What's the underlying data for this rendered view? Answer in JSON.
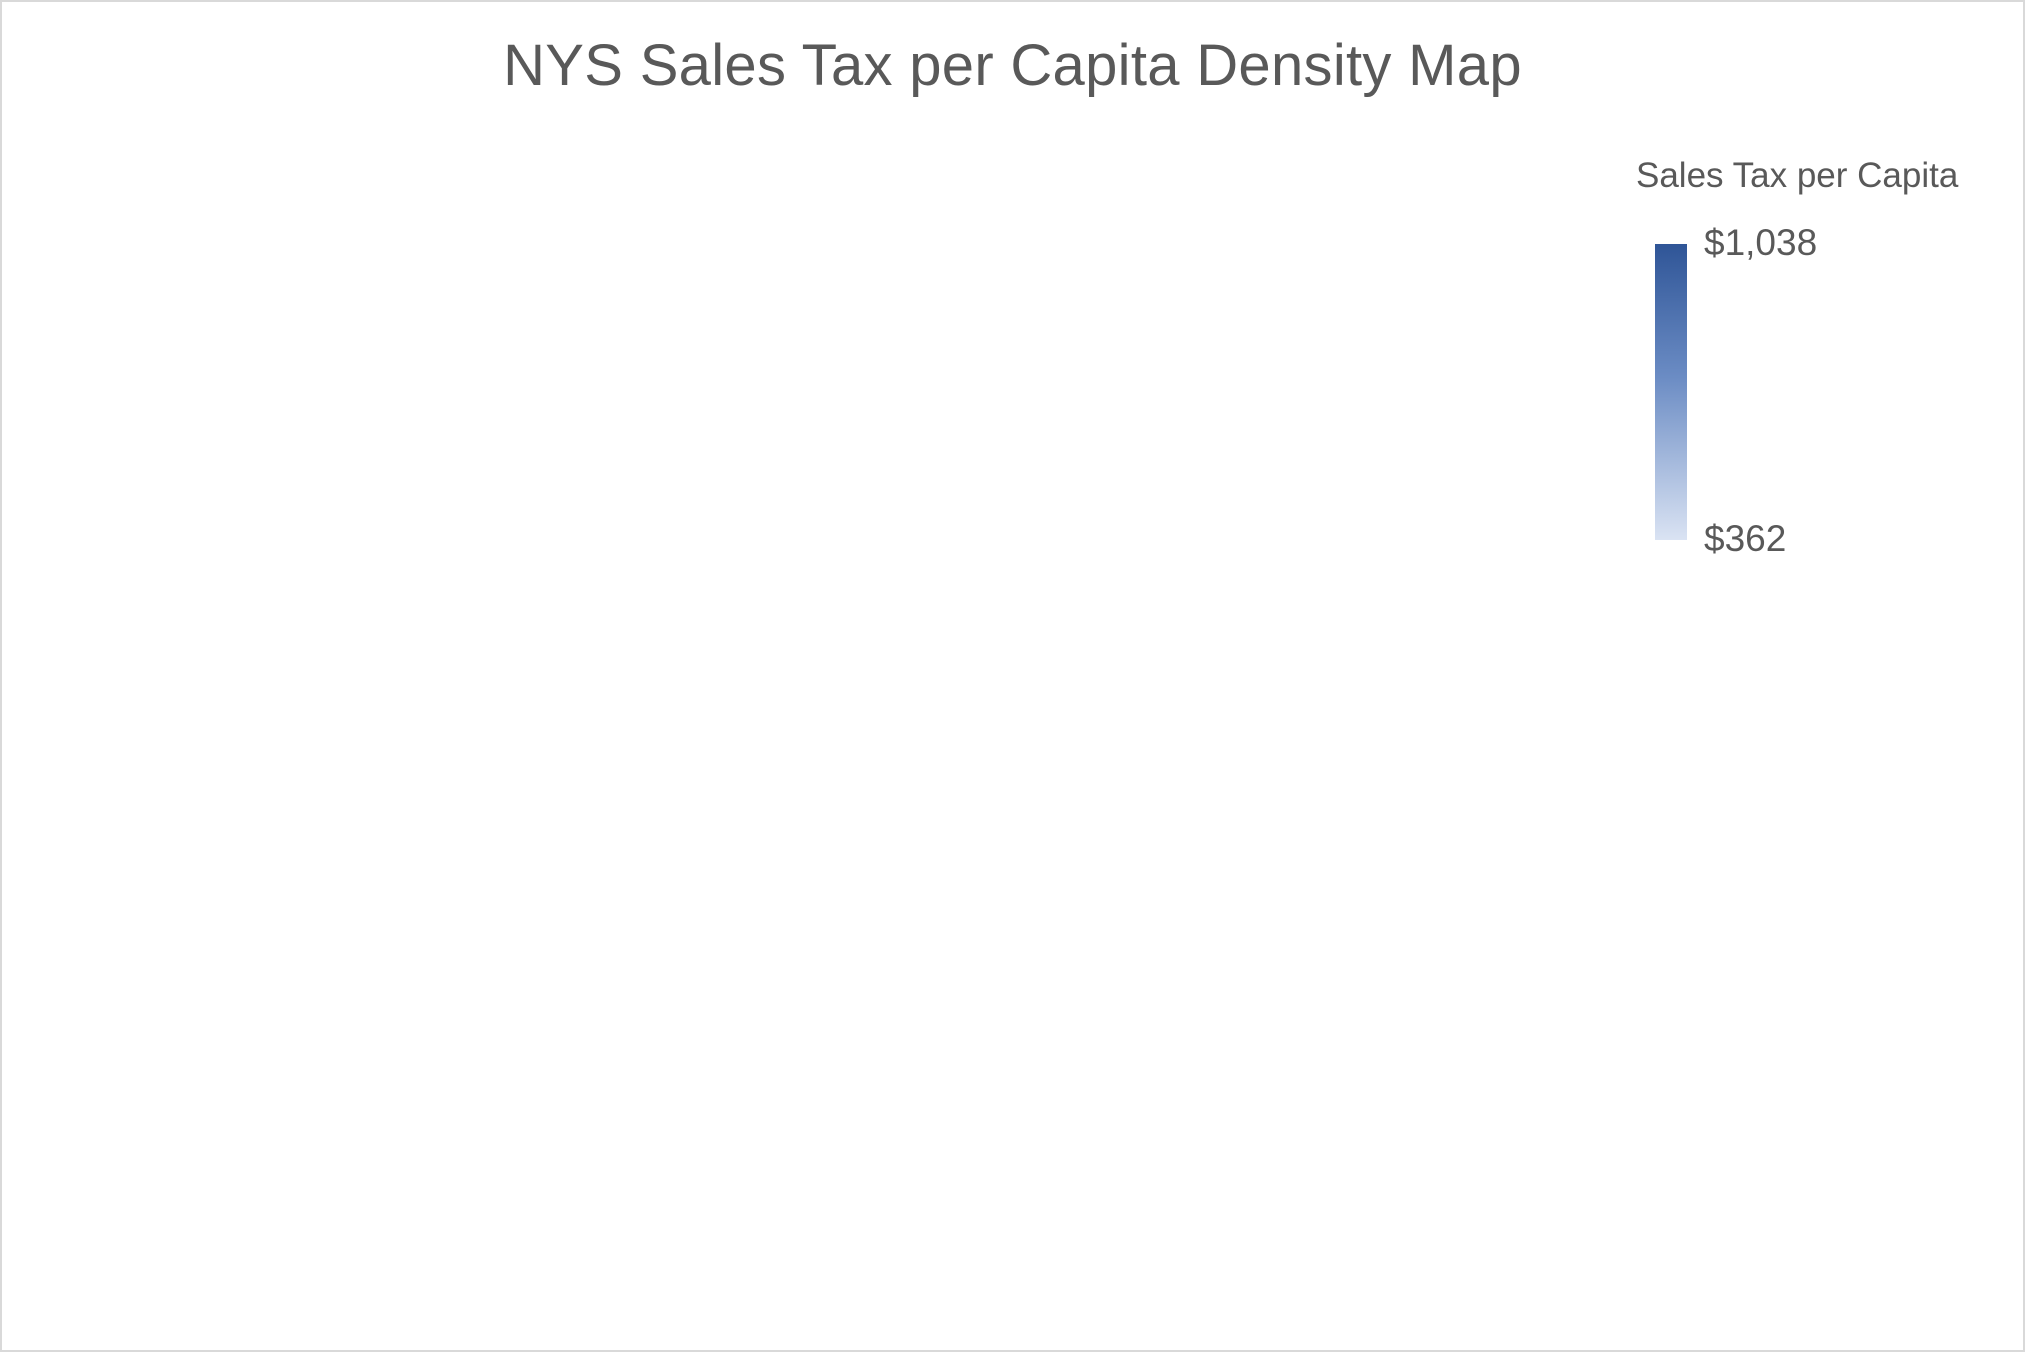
{
  "title": "NYS Sales Tax per Capita Density Map",
  "legend": {
    "title": "Sales Tax per Capita",
    "max_label": "$1,038",
    "min_label": "$362",
    "colors": {
      "max": "#2f5597",
      "mid": "#6b8cc4",
      "min": "#dae3f3"
    }
  },
  "chart_data": {
    "type": "heatmap",
    "title": "NYS Sales Tax per Capita Density Map",
    "color_scale": {
      "label": "Sales Tax per Capita",
      "min": 362,
      "max": 1038,
      "min_color": "#dae3f3",
      "max_color": "#2f5597"
    },
    "legend_position": "top-right",
    "grid": false
  }
}
